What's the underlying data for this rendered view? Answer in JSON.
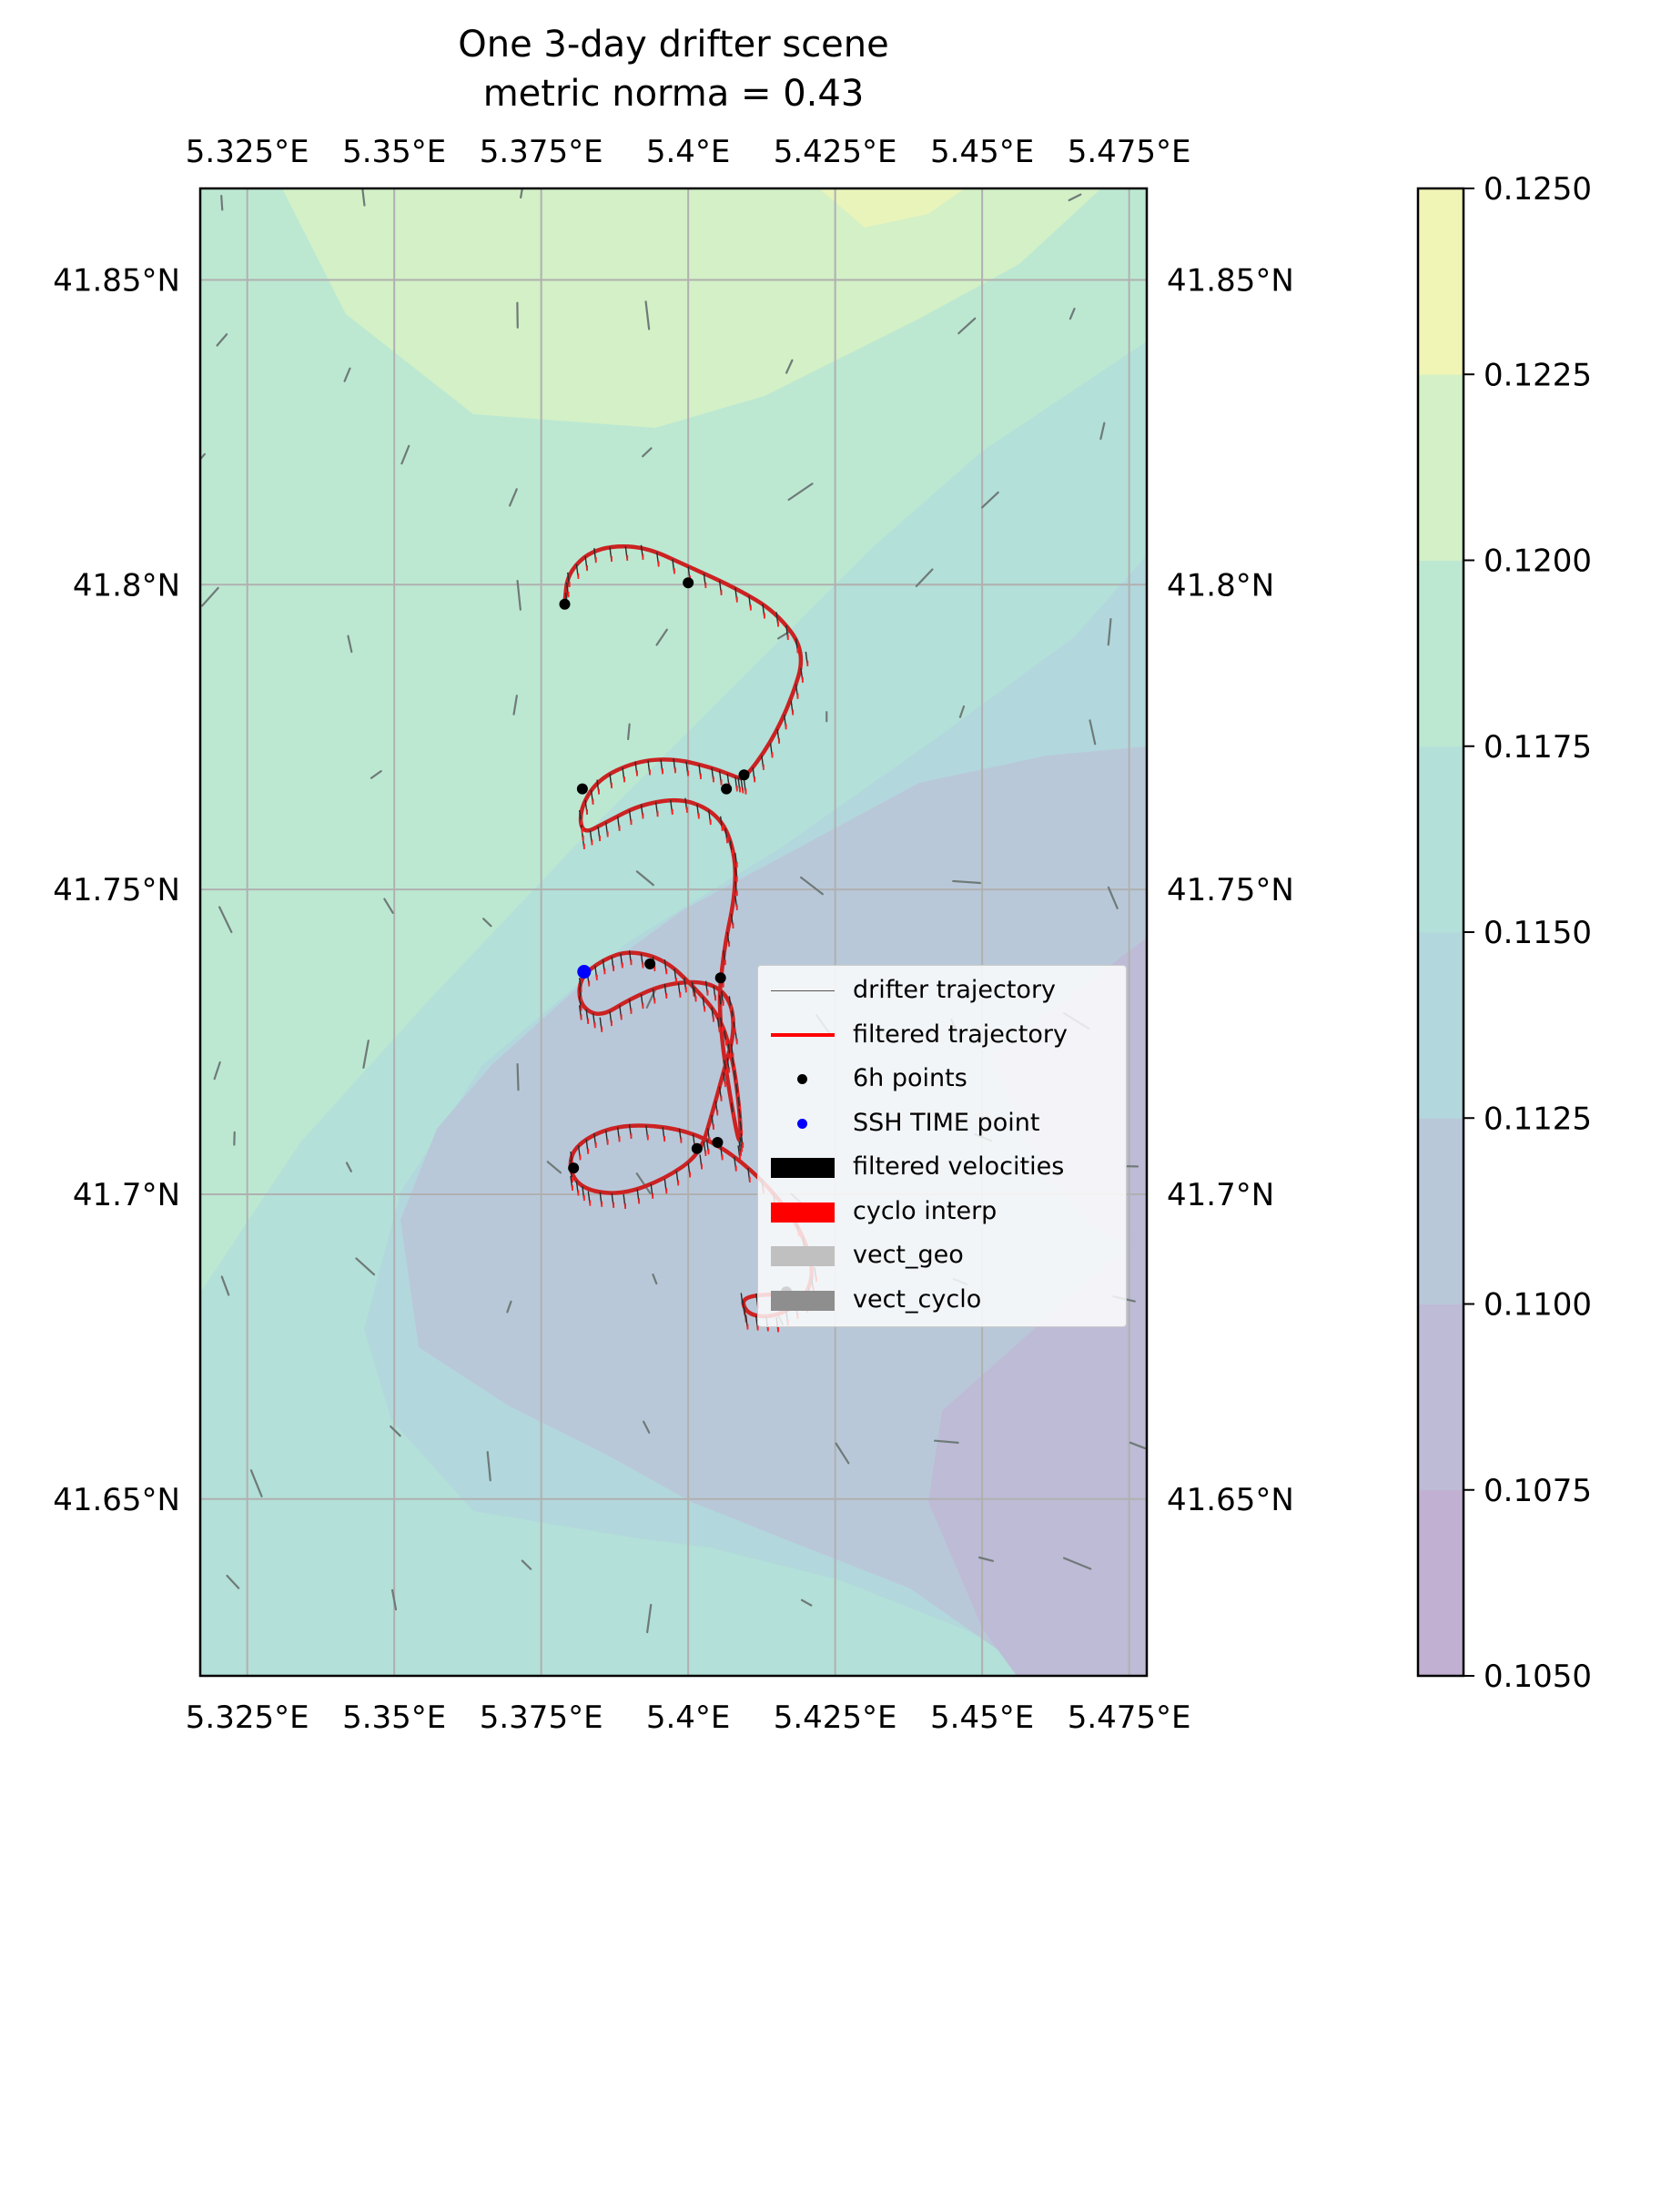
{
  "chart_data": {
    "type": "line",
    "title": "One 3-day drifter scene",
    "subtitle": "metric norma = 0.43",
    "x_ticks": [
      "5.325°E",
      "5.35°E",
      "5.375°E",
      "5.4°E",
      "5.425°E",
      "5.45°E",
      "5.475°E"
    ],
    "y_ticks": [
      "41.85°N",
      "41.8°N",
      "41.75°N",
      "41.7°N",
      "41.65°N"
    ],
    "xlim": [
      5.317,
      5.478
    ],
    "ylim": [
      41.621,
      41.865
    ],
    "grid": true,
    "legend_placement": "center-right",
    "colorbar": {
      "ticks": [
        "0.1050",
        "0.1075",
        "0.1100",
        "0.1125",
        "0.1150",
        "0.1175",
        "0.1200",
        "0.1225",
        "0.1250"
      ],
      "levels": [
        0.105,
        0.1075,
        0.11,
        0.1125,
        0.115,
        0.1175,
        0.12,
        0.1225,
        0.125
      ],
      "colors": [
        "#c1b0d2",
        "#bdbbd6",
        "#b9c8d9",
        "#b2d7dc",
        "#b3e0d8",
        "#bce8d2",
        "#d3f0c6",
        "#f0f4b5"
      ]
    },
    "legend": [
      {
        "label": "drifter trajectory",
        "kind": "thin-line",
        "color": "#555555"
      },
      {
        "label": "filtered trajectory",
        "kind": "line",
        "color": "#ff0000"
      },
      {
        "label": "6h points",
        "kind": "dot",
        "color": "#000000"
      },
      {
        "label": "SSH TIME point",
        "kind": "dot",
        "color": "#0000ff"
      },
      {
        "label": "filtered velocities",
        "kind": "patch",
        "color": "#000000"
      },
      {
        "label": "cyclo interp",
        "kind": "patch",
        "color": "#ff0000"
      },
      {
        "label": "vect_geo",
        "kind": "patch",
        "color": "#c0c0c0"
      },
      {
        "label": "vect_cyclo",
        "kind": "patch",
        "color": "#8e8e8e"
      }
    ],
    "series": [
      {
        "name": "filtered trajectory",
        "color": "#cc2222",
        "points": [
          [
            5.4167,
            41.6835
          ],
          [
            5.409,
            41.6838
          ],
          [
            5.4098,
            41.6802
          ],
          [
            5.415,
            41.6798
          ],
          [
            5.42,
            41.683
          ],
          [
            5.4215,
            41.688
          ],
          [
            5.4185,
            41.6955
          ],
          [
            5.4125,
            41.7025
          ],
          [
            5.4055,
            41.708
          ],
          [
            5.3985,
            41.7108
          ],
          [
            5.39,
            41.7115
          ],
          [
            5.384,
            41.71
          ],
          [
            5.38,
            41.707
          ],
          [
            5.38,
            41.703
          ],
          [
            5.383,
            41.7005
          ],
          [
            5.389,
            41.7
          ],
          [
            5.396,
            41.7025
          ],
          [
            5.402,
            41.7065
          ],
          [
            5.404,
            41.713
          ],
          [
            5.406,
            41.72
          ],
          [
            5.408,
            41.727
          ],
          [
            5.407,
            41.7325
          ],
          [
            5.403,
            41.735
          ],
          [
            5.396,
            41.7345
          ],
          [
            5.39,
            41.732
          ],
          [
            5.385,
            41.729
          ],
          [
            5.3815,
            41.731
          ],
          [
            5.3815,
            41.7355
          ],
          [
            5.3855,
            41.7385
          ],
          [
            5.39,
            41.74
          ],
          [
            5.396,
            41.7385
          ],
          [
            5.401,
            41.734
          ],
          [
            5.4055,
            41.729
          ],
          [
            5.4075,
            41.7225
          ],
          [
            5.4085,
            41.716
          ],
          [
            5.409,
            41.71
          ],
          [
            5.4085,
            41.708
          ],
          [
            5.405,
            41.729
          ],
          [
            5.406,
            41.74
          ],
          [
            5.408,
            41.749
          ],
          [
            5.408,
            41.756
          ],
          [
            5.4055,
            41.762
          ],
          [
            5.3995,
            41.765
          ],
          [
            5.392,
            41.764
          ],
          [
            5.386,
            41.761
          ],
          [
            5.382,
            41.759
          ],
          [
            5.3815,
            41.763
          ],
          [
            5.3845,
            41.768
          ],
          [
            5.391,
            41.771
          ],
          [
            5.3975,
            41.7715
          ],
          [
            5.404,
            41.77
          ],
          [
            5.408,
            41.7685
          ],
          [
            5.4095,
            41.768
          ],
          [
            5.414,
            41.774
          ],
          [
            5.4175,
            41.781
          ],
          [
            5.42,
            41.789
          ],
          [
            5.415,
            41.7955
          ],
          [
            5.408,
            41.7995
          ],
          [
            5.4,
            41.803
          ],
          [
            5.392,
            41.8065
          ],
          [
            5.384,
            41.806
          ],
          [
            5.3795,
            41.802
          ],
          [
            5.379,
            41.797
          ]
        ]
      }
    ],
    "points_6h": [
      [
        5.379,
        41.7968
      ],
      [
        5.4,
        41.8003
      ],
      [
        5.382,
        41.7665
      ],
      [
        5.4065,
        41.7665
      ],
      [
        5.4095,
        41.7688
      ],
      [
        5.3935,
        41.7378
      ],
      [
        5.4055,
        41.7355
      ],
      [
        5.3805,
        41.7043
      ],
      [
        5.4015,
        41.7075
      ],
      [
        5.405,
        41.7085
      ],
      [
        5.4167,
        41.684
      ]
    ],
    "ssh_time_point": [
      5.3823,
      41.7365
    ]
  }
}
